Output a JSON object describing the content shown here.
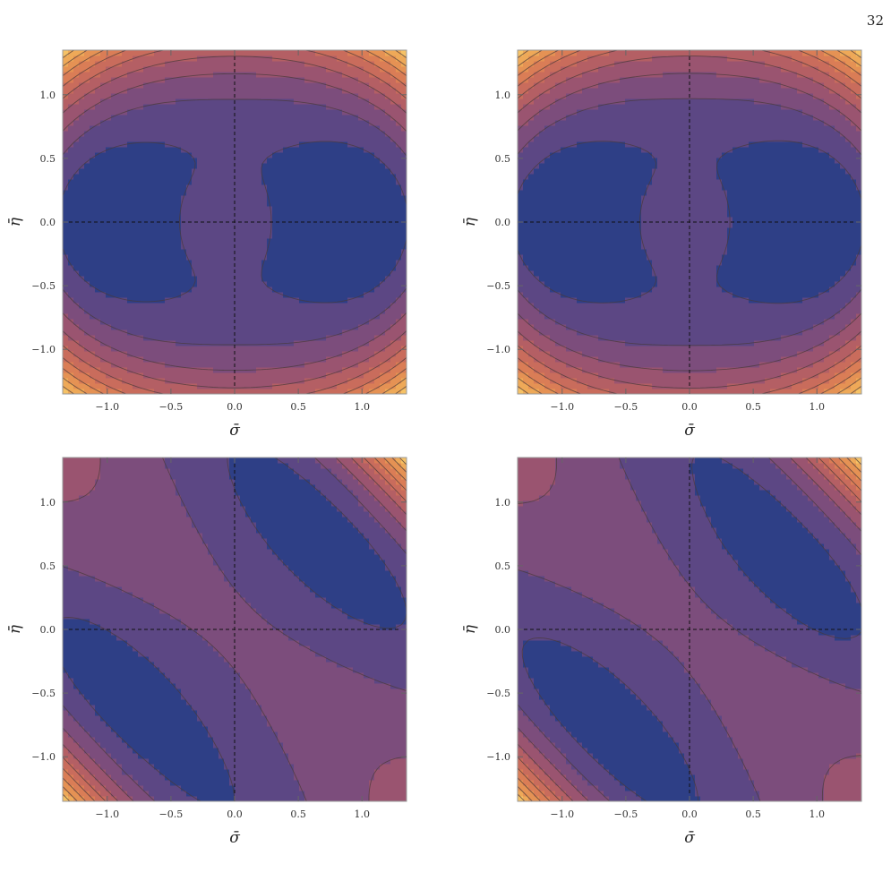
{
  "page_number": "32",
  "chart_data": [
    {
      "type": "contour",
      "xlabel": "σ̄",
      "ylabel": "η̄",
      "xlim": [
        -1.35,
        1.35
      ],
      "ylim": [
        -1.35,
        1.35
      ],
      "xticks": [
        "−1.0",
        "−0.5",
        "0.0",
        "0.5",
        "1.0"
      ],
      "yticks": [
        "−1.0",
        "−0.5",
        "0.0",
        "0.5",
        "1.0"
      ],
      "reference_lines": {
        "x": 0.0,
        "y": 0.0
      },
      "minima": [
        [
          -1.2,
          0.0
        ],
        [
          1.05,
          0.0
        ]
      ],
      "maximum": [
        -0.1,
        0.0
      ],
      "field": "symmetric"
    },
    {
      "type": "contour",
      "xlabel": "σ̄",
      "ylabel": "η̄",
      "xlim": [
        -1.35,
        1.35
      ],
      "ylim": [
        -1.35,
        1.35
      ],
      "xticks": [
        "−1.0",
        "−0.5",
        "0.0",
        "0.5",
        "1.0"
      ],
      "yticks": [
        "−1.0",
        "−0.5",
        "0.0",
        "0.5",
        "1.0"
      ],
      "reference_lines": {
        "x": 0.0,
        "y": 0.0
      },
      "minima": [
        [
          -1.2,
          0.0
        ],
        [
          1.1,
          0.0
        ]
      ],
      "maximum": [
        -0.05,
        0.0
      ],
      "field": "symmetric"
    },
    {
      "type": "contour",
      "xlabel": "σ̄",
      "ylabel": "η̄",
      "xlim": [
        -1.35,
        1.35
      ],
      "ylim": [
        -1.35,
        1.35
      ],
      "xticks": [
        "−1.0",
        "−0.5",
        "0.0",
        "0.5",
        "1.0"
      ],
      "yticks": [
        "−1.0",
        "−0.5",
        "0.0",
        "0.5",
        "1.0"
      ],
      "reference_lines": {
        "x": 0.0,
        "y": 0.0
      },
      "minima": [
        [
          -0.9,
          -0.4
        ],
        [
          0.7,
          0.6
        ]
      ],
      "field": "tilted"
    },
    {
      "type": "contour",
      "xlabel": "σ̄",
      "ylabel": "η̄",
      "xlim": [
        -1.35,
        1.35
      ],
      "ylim": [
        -1.35,
        1.35
      ],
      "xticks": [
        "−1.0",
        "−0.5",
        "0.0",
        "0.5",
        "1.0"
      ],
      "yticks": [
        "−1.0",
        "−0.5",
        "0.0",
        "0.5",
        "1.0"
      ],
      "reference_lines": {
        "x": 0.0,
        "y": 0.0
      },
      "minima": [
        [
          -0.65,
          -0.7
        ],
        [
          0.8,
          0.4
        ]
      ],
      "field": "tilted"
    }
  ],
  "colors": {
    "levels": [
      "#2e3f86",
      "#5c4784",
      "#7c4d7c",
      "#9a5470",
      "#b45f64",
      "#c96c5c",
      "#da7d56",
      "#e59254",
      "#eea958",
      "#f6c266"
    ],
    "contour_line": "#4a3a3a",
    "frame": "#9a9a9a",
    "reference_line": "#111111"
  }
}
